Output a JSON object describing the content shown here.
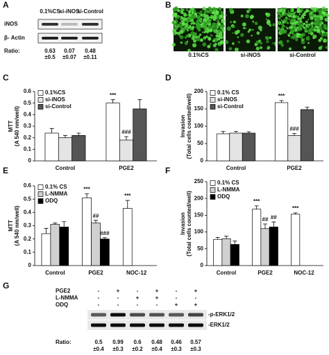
{
  "panel_a": {
    "label": "A",
    "columns": [
      "0.1%CS",
      "si-iNOS",
      "si-Control"
    ],
    "rows": [
      "iNOS",
      "β- Actin"
    ],
    "ratio_label": "Ratio:",
    "ratios": [
      {
        "value": "0.63",
        "error": "±0.5"
      },
      {
        "value": "0.07",
        "error": "±0.07"
      },
      {
        "value": "0.48",
        "error": "±0.11"
      }
    ]
  },
  "panel_b": {
    "label": "B",
    "captions": [
      "0.1%CS",
      "si-iNOS",
      "si-Control"
    ]
  },
  "chart_data": [
    {
      "type": "bar",
      "label": "C",
      "ylabel": "MTT",
      "ylabel_sub": "(A 540 nm/well)",
      "categories": [
        "Control",
        "PGE2"
      ],
      "ylim": [
        0,
        0.6
      ],
      "yticks": [
        0,
        0.1,
        0.2,
        0.3,
        0.4,
        0.5,
        0.6
      ],
      "legend": "upper left",
      "series": [
        {
          "name": "0.1%CS",
          "color": "#ffffff",
          "values": [
            0.24,
            0.5
          ],
          "errors": [
            0.04,
            0.03
          ],
          "significance": [
            null,
            "***"
          ]
        },
        {
          "name": "si-iNOS",
          "color": "#e4e4e4",
          "values": [
            0.2,
            0.18
          ],
          "errors": [
            0.02,
            0.03
          ],
          "significance": [
            null,
            "###"
          ]
        },
        {
          "name": "si-Control",
          "color": "#555555",
          "values": [
            0.22,
            0.45
          ],
          "errors": [
            0.02,
            0.08
          ],
          "significance": [
            null,
            null
          ]
        }
      ]
    },
    {
      "type": "bar",
      "label": "D",
      "ylabel": "Invasion",
      "ylabel_sub": "(Total cells counted/well)",
      "categories": [
        "Control",
        "PGE2"
      ],
      "ylim": [
        0,
        200
      ],
      "yticks": [
        0,
        50,
        100,
        150,
        200
      ],
      "legend": "upper left",
      "series": [
        {
          "name": "0.1% CS",
          "color": "#ffffff",
          "values": [
            78,
            168
          ],
          "errors": [
            7,
            6
          ],
          "significance": [
            null,
            "***"
          ]
        },
        {
          "name": "si-iNOS",
          "color": "#e4e4e4",
          "values": [
            80,
            73
          ],
          "errors": [
            5,
            6
          ],
          "significance": [
            null,
            "###"
          ]
        },
        {
          "name": "si-Control",
          "color": "#555555",
          "values": [
            80,
            148
          ],
          "errors": [
            4,
            7
          ],
          "significance": [
            null,
            null
          ]
        }
      ]
    },
    {
      "type": "bar",
      "label": "E",
      "ylabel": "MTT",
      "ylabel_sub": "(A 540 nm/well)",
      "categories": [
        "Control",
        "PGE2",
        "NOC-12"
      ],
      "ylim": [
        0,
        0.6
      ],
      "yticks": [
        0,
        0.1,
        0.2,
        0.3,
        0.4,
        0.5,
        0.6
      ],
      "legend": "upper left",
      "series": [
        {
          "name": "0.1% CS",
          "color": "#ffffff",
          "values": [
            0.24,
            0.51,
            0.43
          ],
          "errors": [
            0.04,
            0.03,
            0.06
          ],
          "significance": [
            null,
            "***",
            "***"
          ]
        },
        {
          "name": "L-NMMA",
          "color": "#d0d0d0",
          "values": [
            0.31,
            0.32,
            null
          ],
          "errors": [
            0.01,
            0.02,
            null
          ],
          "significance": [
            null,
            "##",
            null
          ]
        },
        {
          "name": "ODQ",
          "color": "#000000",
          "values": [
            0.29,
            0.2,
            null
          ],
          "errors": [
            0.04,
            0.01,
            null
          ],
          "significance": [
            null,
            "###",
            null
          ]
        }
      ]
    },
    {
      "type": "bar",
      "label": "F",
      "ylabel": "Invasion",
      "ylabel_sub": "(Total cells counted/well)",
      "categories": [
        "Control",
        "PGE2",
        "NOC-12"
      ],
      "ylim": [
        0,
        250
      ],
      "yticks": [
        0,
        50,
        100,
        150,
        200,
        250
      ],
      "legend": "upper left",
      "series": [
        {
          "name": "0.1% CS",
          "color": "#ffffff",
          "values": [
            78,
            168,
            153
          ],
          "errors": [
            6,
            10,
            4
          ],
          "significance": [
            null,
            "***",
            "***"
          ]
        },
        {
          "name": "L-NMMA",
          "color": "#d0d0d0",
          "values": [
            80,
            110,
            null
          ],
          "errors": [
            8,
            14,
            null
          ],
          "significance": [
            null,
            "##",
            null
          ]
        },
        {
          "name": "ODQ",
          "color": "#000000",
          "values": [
            63,
            115,
            null
          ],
          "errors": [
            10,
            15,
            null
          ],
          "significance": [
            null,
            "##",
            null
          ]
        }
      ]
    }
  ],
  "panel_g": {
    "label": "G",
    "treatments": [
      {
        "name": "PGE2",
        "signs": [
          "-",
          "+",
          "-",
          "+",
          "-",
          "+"
        ]
      },
      {
        "name": "L-NMMA",
        "signs": [
          "-",
          "-",
          "+",
          "+",
          "-",
          "-"
        ]
      },
      {
        "name": "ODQ",
        "signs": [
          "-",
          "-",
          "-",
          "-",
          "+",
          "+"
        ]
      }
    ],
    "bands": [
      "-p-ERK1/2",
      "-ERK1/2"
    ],
    "ratio_label": "Ratio:",
    "ratios": [
      {
        "value": "0.5",
        "error": "±0.4"
      },
      {
        "value": "0.99",
        "error": "±0.3"
      },
      {
        "value": "0.6",
        "error": "±0.2"
      },
      {
        "value": "0.48",
        "error": "±0.4"
      },
      {
        "value": "0.46",
        "error": "±0.3"
      },
      {
        "value": "0.57",
        "error": "±0.3"
      }
    ]
  }
}
